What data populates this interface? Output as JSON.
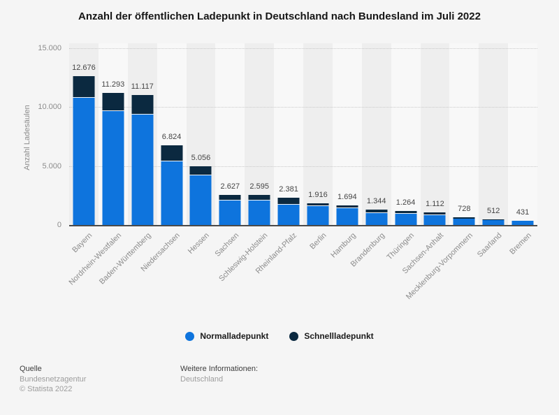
{
  "title": "Anzahl der öffentlichen Ladepunkt in Deutschland nach Bundesland im Juli 2022",
  "chart_data": {
    "type": "bar",
    "stacked": true,
    "title": "Anzahl der öffentlichen Ladepunkt in Deutschland nach Bundesland im Juli 2022",
    "xlabel": "",
    "ylabel": "Anzahl Ladesäulen",
    "ylim": [
      0,
      15000
    ],
    "grid": "horizontal-dotted",
    "legend_position": "bottom-center",
    "categories": [
      "Bayern",
      "Nordrhein-Westfalen",
      "Baden-Württemberg",
      "Niedersachsen",
      "Hessen",
      "Sachsen",
      "Schleswig-Holstein",
      "Rheinland-Pfalz",
      "Berlin",
      "Hamburg",
      "Brandenburg",
      "Thüringen",
      "Sachsen-Anhalt",
      "Mecklenburg-Vorpommern",
      "Saarland",
      "Bremen"
    ],
    "totals": [
      12676,
      11293,
      11117,
      6824,
      5056,
      2627,
      2595,
      2381,
      1916,
      1694,
      1344,
      1264,
      1112,
      728,
      512,
      431
    ],
    "total_labels": [
      "12.676",
      "11.293",
      "11.117",
      "6.824",
      "5.056",
      "2.627",
      "2.595",
      "2.381",
      "1.916",
      "1.694",
      "1.344",
      "1.264",
      "1.112",
      "728",
      "512",
      "431"
    ],
    "series": [
      {
        "name": "Normalladepunkt",
        "color": "#0e74dd",
        "values": [
          10870,
          9712,
          9445,
          5465,
          4247,
          2149,
          2111,
          1750,
          1661,
          1479,
          1064,
          1014,
          892,
          618,
          470,
          395
        ]
      },
      {
        "name": "Schnellladepunkt",
        "color": "#0b2940",
        "values": [
          1806,
          1581,
          1672,
          1359,
          809,
          478,
          484,
          631,
          255,
          215,
          280,
          250,
          220,
          110,
          42,
          36
        ]
      }
    ],
    "yticks": [
      {
        "value": 0,
        "label": "0"
      },
      {
        "value": 5000,
        "label": "5.000"
      },
      {
        "value": 10000,
        "label": "10.000"
      },
      {
        "value": 15000,
        "label": "15.000"
      }
    ]
  },
  "footer": {
    "left": {
      "heading": "Quelle",
      "lines": [
        "Bundesnetzagentur",
        "© Statista 2022"
      ]
    },
    "right": {
      "heading": "Weitere Informationen:",
      "lines": [
        "Deutschland"
      ]
    }
  }
}
